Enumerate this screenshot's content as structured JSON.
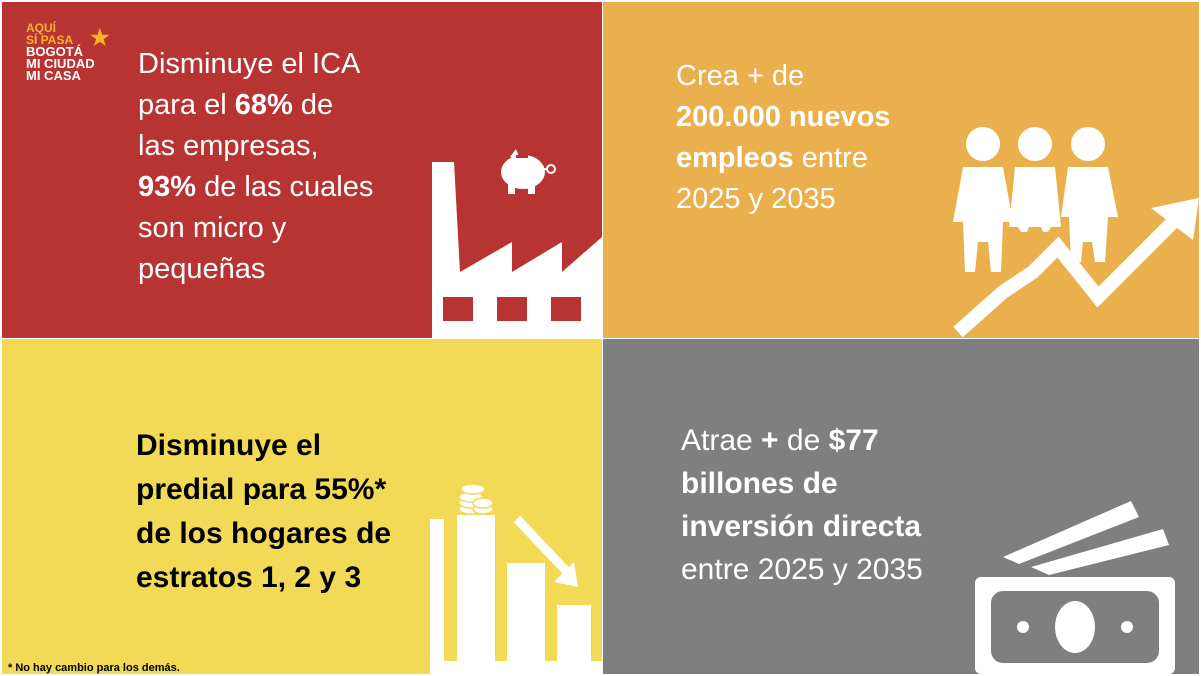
{
  "logo": {
    "line1": "AQUÍ",
    "line2": "SÍ PASA",
    "line3": "BOGOTÁ",
    "line4": "MI CIUDAD",
    "line5": "MI CASA"
  },
  "panels": {
    "ica": {
      "l1": "Disminuye el ICA",
      "l2a": "para el ",
      "l2b": "68%",
      "l2c": " de",
      "l3": "las empresas,",
      "l4a": "93%",
      "l4b": " de las cuales",
      "l5": "son micro y",
      "l6": "pequeñas"
    },
    "empleos": {
      "l1": "Crea +  de",
      "l2": "200.000 nuevos",
      "l3a": "empleos",
      "l3b": " entre",
      "l4": "2025 y 2035"
    },
    "predial": {
      "l1": "Disminuye el",
      "l2": "predial para 55%*",
      "l3": "de los hogares de",
      "l4": "estratos 1, 2 y 3"
    },
    "inversion": {
      "l1a": "Atrae ",
      "l1b": "+",
      "l1c": " de ",
      "l1d": "$77",
      "l2": "billones de",
      "l3": "inversión directa",
      "l4": "entre 2025 y 2035"
    }
  },
  "footnote": "* No hay cambio para los demás.",
  "colors": {
    "red": "#b73433",
    "orange": "#ebb04e",
    "yellow": "#f2d956",
    "gray": "#7f7f7f",
    "logo_gold": "#f6b42b"
  },
  "icons": [
    "factory-icon",
    "piggy-bank-icon",
    "people-growth-icon",
    "bar-chart-down-icon",
    "coins-icon",
    "money-icon"
  ]
}
